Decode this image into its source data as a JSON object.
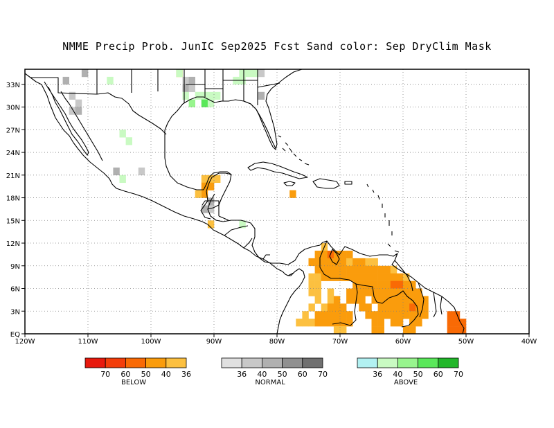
{
  "title": "NMME Precip Prob. JunIC  Sep2025 Fcst  Sand color: Sep DryClim Mask",
  "map": {
    "lon_range": [
      -120,
      -40
    ],
    "lat_range": [
      0,
      35
    ],
    "x_ticks": [
      {
        "lon": -120,
        "label": "120W"
      },
      {
        "lon": -110,
        "label": "110W"
      },
      {
        "lon": -100,
        "label": "100W"
      },
      {
        "lon": -90,
        "label": "90W"
      },
      {
        "lon": -80,
        "label": "80W"
      },
      {
        "lon": -70,
        "label": "70W"
      },
      {
        "lon": -60,
        "label": "60W"
      },
      {
        "lon": -50,
        "label": "50W"
      },
      {
        "lon": -40,
        "label": "40W"
      }
    ],
    "y_ticks": [
      {
        "lat": 0,
        "label": "EQ"
      },
      {
        "lat": 3,
        "label": "3N"
      },
      {
        "lat": 6,
        "label": "6N"
      },
      {
        "lat": 9,
        "label": "9N"
      },
      {
        "lat": 12,
        "label": "12N"
      },
      {
        "lat": 15,
        "label": "15N"
      },
      {
        "lat": 18,
        "label": "18N"
      },
      {
        "lat": 21,
        "label": "21N"
      },
      {
        "lat": 24,
        "label": "24N"
      },
      {
        "lat": 27,
        "label": "27N"
      },
      {
        "lat": 30,
        "label": "30N"
      },
      {
        "lat": 33,
        "label": "33N"
      }
    ],
    "grid": true
  },
  "legends": [
    {
      "name": "BELOW",
      "colors": [
        "#e8190d",
        "#f33d0a",
        "#f96a05",
        "#fa9c0c",
        "#fcc040"
      ],
      "labels": [
        "70",
        "60",
        "50",
        "40",
        "36"
      ]
    },
    {
      "name": "NORMAL",
      "colors": [
        "#e0e0e0",
        "#c8c8c8",
        "#b0b0b0",
        "#909090",
        "#707070"
      ],
      "labels": [
        "36",
        "40",
        "50",
        "60",
        "70"
      ]
    },
    {
      "name": "ABOVE",
      "colors": [
        "#b2f1f2",
        "#c9fac2",
        "#98f58e",
        "#5ae85a",
        "#22b72a"
      ],
      "labels": [
        "36",
        "40",
        "50",
        "60",
        "70"
      ]
    }
  ],
  "cells": {
    "below": [
      [
        -95.5,
        34.5,
        4
      ],
      [
        -91.5,
        20.5,
        4
      ],
      [
        -90.5,
        20.5,
        4
      ],
      [
        -89.5,
        20.5,
        4
      ],
      [
        -91.5,
        19.5,
        3
      ],
      [
        -90.5,
        19.5,
        3
      ],
      [
        -91.5,
        18.5,
        3
      ],
      [
        -92.5,
        18.5,
        4
      ],
      [
        -77.5,
        18.5,
        3
      ],
      [
        -90.5,
        14.5,
        4
      ],
      [
        -72.5,
        11.5,
        4
      ],
      [
        -73.5,
        10.5,
        3
      ],
      [
        -72.5,
        10.5,
        3
      ],
      [
        -71.5,
        10.5,
        2
      ],
      [
        -70.5,
        10.5,
        3
      ],
      [
        -69.5,
        10.5,
        3
      ],
      [
        -68.5,
        10.5,
        3
      ],
      [
        -74.5,
        9.5,
        3
      ],
      [
        -73.5,
        9.5,
        3
      ],
      [
        -72.5,
        9.5,
        3
      ],
      [
        -71.5,
        9.5,
        3
      ],
      [
        -70.5,
        9.5,
        3
      ],
      [
        -69.5,
        9.5,
        3
      ],
      [
        -68.5,
        9.5,
        4
      ],
      [
        -67.5,
        9.5,
        3
      ],
      [
        -66.5,
        9.5,
        3
      ],
      [
        -65.5,
        9.5,
        4
      ],
      [
        -64.5,
        9.5,
        4
      ],
      [
        -73.5,
        8.5,
        3
      ],
      [
        -72.5,
        8.5,
        3
      ],
      [
        -71.5,
        8.5,
        3
      ],
      [
        -70.5,
        8.5,
        3
      ],
      [
        -69.5,
        8.5,
        3
      ],
      [
        -68.5,
        8.5,
        3
      ],
      [
        -67.5,
        8.5,
        3
      ],
      [
        -66.5,
        8.5,
        3
      ],
      [
        -65.5,
        8.5,
        3
      ],
      [
        -64.5,
        8.5,
        3
      ],
      [
        -63.5,
        8.5,
        3
      ],
      [
        -62.5,
        8.5,
        3
      ],
      [
        -61.5,
        8.5,
        4
      ],
      [
        -74.5,
        7.5,
        4
      ],
      [
        -73.5,
        7.5,
        4
      ],
      [
        -72.5,
        7.5,
        3
      ],
      [
        -71.5,
        7.5,
        3
      ],
      [
        -70.5,
        7.5,
        3
      ],
      [
        -69.5,
        7.5,
        3
      ],
      [
        -68.5,
        7.5,
        3
      ],
      [
        -67.5,
        7.5,
        3
      ],
      [
        -66.5,
        7.5,
        3
      ],
      [
        -65.5,
        7.5,
        3
      ],
      [
        -64.5,
        7.5,
        3
      ],
      [
        -63.5,
        7.5,
        3
      ],
      [
        -62.5,
        7.5,
        3
      ],
      [
        -61.5,
        7.5,
        3
      ],
      [
        -60.5,
        7.5,
        3
      ],
      [
        -59.5,
        7.5,
        4
      ],
      [
        -74.5,
        6.5,
        4
      ],
      [
        -73.5,
        6.5,
        4
      ],
      [
        -67.5,
        6.5,
        3
      ],
      [
        -66.5,
        6.5,
        3
      ],
      [
        -65.5,
        6.5,
        3
      ],
      [
        -64.5,
        6.5,
        3
      ],
      [
        -63.5,
        6.5,
        3
      ],
      [
        -62.5,
        6.5,
        3
      ],
      [
        -61.5,
        6.5,
        2
      ],
      [
        -60.5,
        6.5,
        2
      ],
      [
        -59.5,
        6.5,
        3
      ],
      [
        -58.5,
        6.5,
        3
      ],
      [
        -74.5,
        5.5,
        4
      ],
      [
        -73.5,
        5.5,
        4
      ],
      [
        -71.5,
        5.5,
        4
      ],
      [
        -68.5,
        5.5,
        3
      ],
      [
        -67.5,
        5.5,
        3
      ],
      [
        -66.5,
        5.5,
        3
      ],
      [
        -65.5,
        5.5,
        3
      ],
      [
        -64.5,
        5.5,
        3
      ],
      [
        -63.5,
        5.5,
        3
      ],
      [
        -62.5,
        5.5,
        3
      ],
      [
        -61.5,
        5.5,
        3
      ],
      [
        -60.5,
        5.5,
        3
      ],
      [
        -59.5,
        5.5,
        3
      ],
      [
        -58.5,
        5.5,
        3
      ],
      [
        -57.5,
        5.5,
        3
      ],
      [
        -73.5,
        4.5,
        4
      ],
      [
        -71.5,
        4.5,
        4
      ],
      [
        -70.5,
        4.5,
        3
      ],
      [
        -68.5,
        4.5,
        3
      ],
      [
        -67.5,
        4.5,
        3
      ],
      [
        -66.5,
        4.5,
        3
      ],
      [
        -64.5,
        4.5,
        3
      ],
      [
        -63.5,
        4.5,
        3
      ],
      [
        -62.5,
        4.5,
        3
      ],
      [
        -61.5,
        4.5,
        3
      ],
      [
        -60.5,
        4.5,
        3
      ],
      [
        -59.5,
        4.5,
        3
      ],
      [
        -58.5,
        4.5,
        3
      ],
      [
        -57.5,
        4.5,
        3
      ],
      [
        -56.5,
        4.5,
        3
      ],
      [
        -74.5,
        3.5,
        4
      ],
      [
        -72.5,
        3.5,
        4
      ],
      [
        -71.5,
        3.5,
        3
      ],
      [
        -70.5,
        3.5,
        3
      ],
      [
        -69.5,
        3.5,
        3
      ],
      [
        -66.5,
        3.5,
        3
      ],
      [
        -65.5,
        3.5,
        3
      ],
      [
        -63.5,
        3.5,
        3
      ],
      [
        -62.5,
        3.5,
        3
      ],
      [
        -61.5,
        3.5,
        3
      ],
      [
        -60.5,
        3.5,
        3
      ],
      [
        -59.5,
        3.5,
        3
      ],
      [
        -58.5,
        3.5,
        2
      ],
      [
        -57.5,
        3.5,
        3
      ],
      [
        -56.5,
        3.5,
        3
      ],
      [
        -75.5,
        2.5,
        4
      ],
      [
        -73.5,
        2.5,
        3
      ],
      [
        -72.5,
        2.5,
        3
      ],
      [
        -71.5,
        2.5,
        3
      ],
      [
        -70.5,
        2.5,
        3
      ],
      [
        -69.5,
        2.5,
        3
      ],
      [
        -68.5,
        2.5,
        3
      ],
      [
        -65.5,
        2.5,
        3
      ],
      [
        -64.5,
        2.5,
        3
      ],
      [
        -63.5,
        2.5,
        3
      ],
      [
        -62.5,
        2.5,
        3
      ],
      [
        -61.5,
        2.5,
        3
      ],
      [
        -60.5,
        2.5,
        3
      ],
      [
        -59.5,
        2.5,
        3
      ],
      [
        -58.5,
        2.5,
        3
      ],
      [
        -57.5,
        2.5,
        3
      ],
      [
        -56.5,
        2.5,
        3
      ],
      [
        -76.5,
        1.5,
        4
      ],
      [
        -75.5,
        1.5,
        4
      ],
      [
        -74.5,
        1.5,
        4
      ],
      [
        -73.5,
        1.5,
        3
      ],
      [
        -72.5,
        1.5,
        3
      ],
      [
        -71.5,
        1.5,
        3
      ],
      [
        -70.5,
        1.5,
        3
      ],
      [
        -69.5,
        1.5,
        3
      ],
      [
        -68.5,
        1.5,
        3
      ],
      [
        -64.5,
        1.5,
        3
      ],
      [
        -63.5,
        1.5,
        3
      ],
      [
        -61.5,
        1.5,
        3
      ],
      [
        -60.5,
        1.5,
        3
      ],
      [
        -58.5,
        1.5,
        3
      ],
      [
        -57.5,
        1.5,
        3
      ],
      [
        -64.5,
        0.5,
        3
      ],
      [
        -63.5,
        0.5,
        3
      ],
      [
        -59.5,
        0.5,
        3
      ],
      [
        -58.5,
        0.5,
        3
      ],
      [
        -70.5,
        0.5,
        4
      ],
      [
        -69.5,
        0.5,
        4
      ],
      [
        -52.5,
        2.5,
        2
      ],
      [
        -51.5,
        2.5,
        2
      ],
      [
        -52.5,
        1.5,
        2
      ],
      [
        -51.5,
        1.5,
        2
      ],
      [
        -50.5,
        1.5,
        2
      ],
      [
        -52.5,
        0.5,
        2
      ],
      [
        -51.5,
        0.5,
        2
      ],
      [
        -50.5,
        0.5,
        2
      ]
    ],
    "normal": [
      [
        -113.5,
        33.5,
        2
      ],
      [
        -110.5,
        34.5,
        2
      ],
      [
        -94.5,
        33.5,
        1
      ],
      [
        -93.5,
        33.5,
        2
      ],
      [
        -94.5,
        32.5,
        2
      ],
      [
        -93.5,
        32.5,
        1
      ],
      [
        -112.5,
        31.5,
        1
      ],
      [
        -111.5,
        30.5,
        1
      ],
      [
        -112.5,
        29.5,
        1
      ],
      [
        -111.5,
        29.5,
        2
      ],
      [
        -105.5,
        21.5,
        2
      ],
      [
        -101.5,
        21.5,
        1
      ],
      [
        -91.5,
        16.5,
        2
      ],
      [
        -90.5,
        17.5,
        2
      ],
      [
        -90.5,
        16.5,
        1
      ],
      [
        -82.5,
        34.5,
        1
      ],
      [
        -82.5,
        31.5,
        2
      ]
    ],
    "above": [
      [
        -106.5,
        33.5,
        1
      ],
      [
        -95.5,
        34.5,
        1
      ],
      [
        -94.5,
        31.5,
        1
      ],
      [
        -93.5,
        30.5,
        2
      ],
      [
        -92.5,
        31.5,
        1
      ],
      [
        -91.5,
        31.5,
        1
      ],
      [
        -91.5,
        30.5,
        3
      ],
      [
        -90.5,
        30.5,
        1
      ],
      [
        -90.5,
        31.5,
        1
      ],
      [
        -89.5,
        31.5,
        1
      ],
      [
        -86.5,
        33.5,
        1
      ],
      [
        -85.5,
        33.5,
        1
      ],
      [
        -85.5,
        34.5,
        1
      ],
      [
        -84.5,
        34.5,
        1
      ],
      [
        -83.5,
        34.5,
        1
      ],
      [
        -104.5,
        26.5,
        1
      ],
      [
        -103.5,
        25.5,
        1
      ],
      [
        -104.5,
        20.5,
        1
      ],
      [
        -85.5,
        14.5,
        1
      ]
    ]
  }
}
